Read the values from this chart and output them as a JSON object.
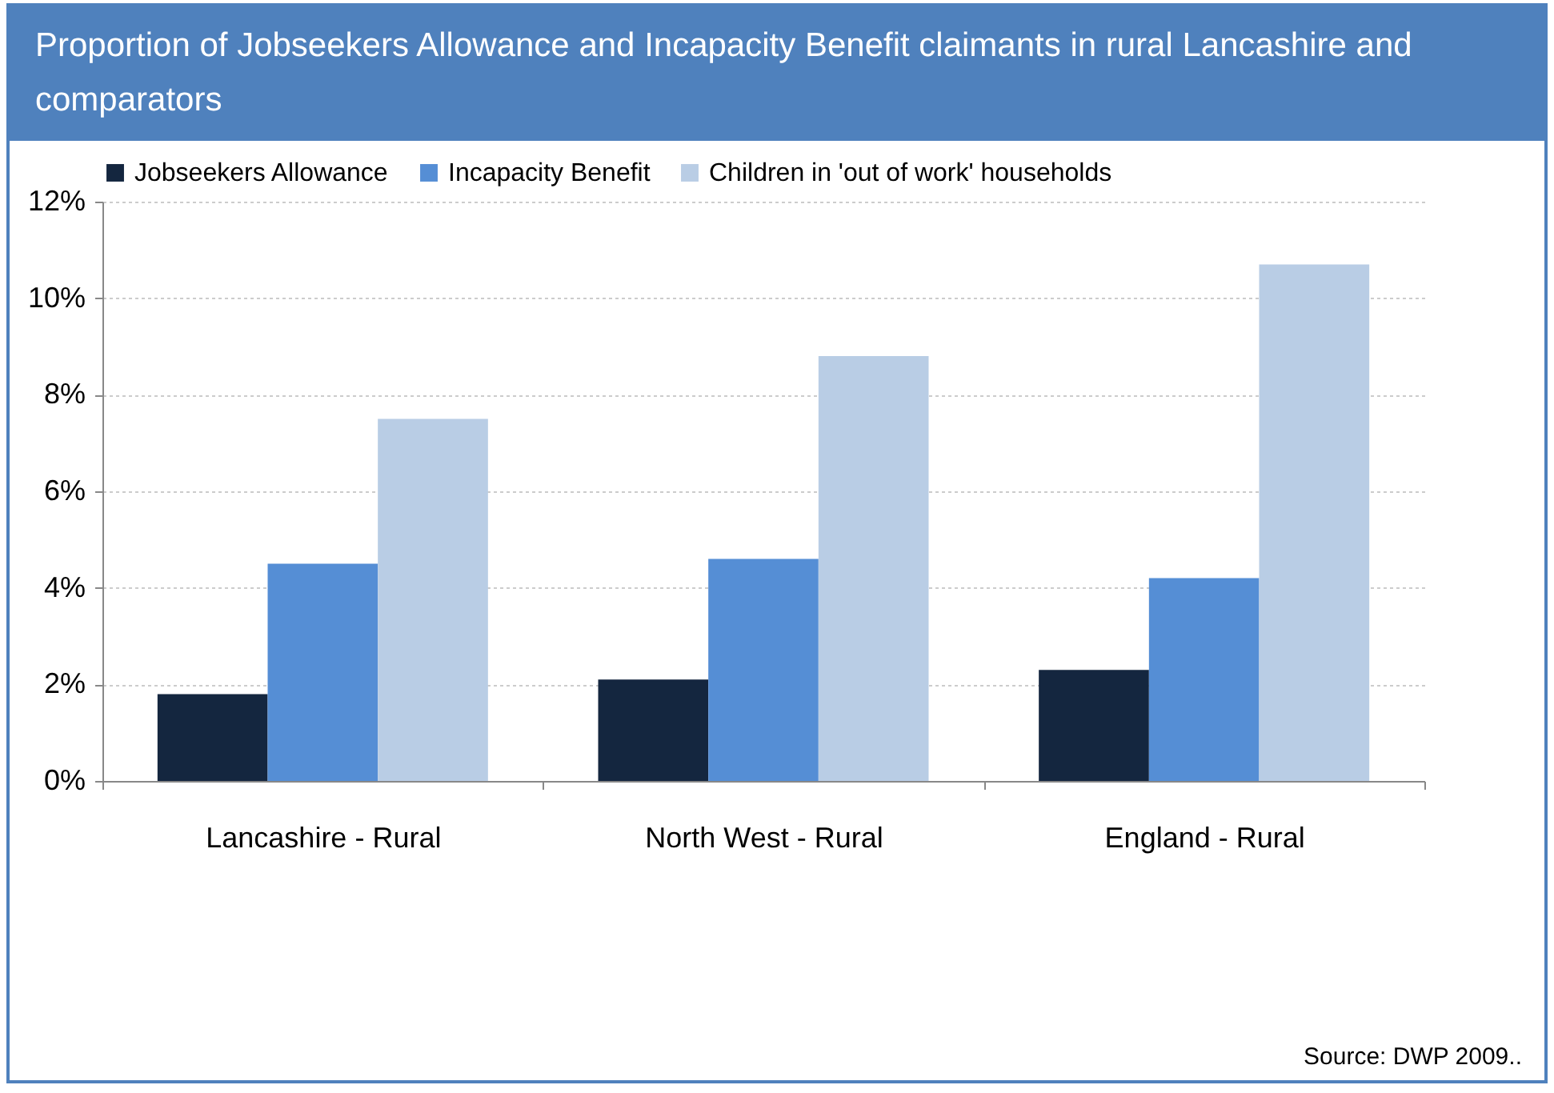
{
  "chart_data": {
    "type": "bar",
    "title": "Proportion of Jobseekers Allowance and Incapacity Benefit claimants in rural Lancashire and comparators",
    "categories": [
      "Lancashire - Rural",
      "North West - Rural",
      "England - Rural"
    ],
    "series": [
      {
        "name": "Jobseekers Allowance",
        "color": "#14263f",
        "values": [
          1.8,
          2.1,
          2.3
        ]
      },
      {
        "name": "Incapacity Benefit",
        "color": "#558ed5",
        "values": [
          4.5,
          4.6,
          4.2
        ]
      },
      {
        "name": "Children in 'out of work' households",
        "color": "#b9cde5",
        "values": [
          7.5,
          8.8,
          10.7
        ]
      }
    ],
    "ylim": [
      0,
      12
    ],
    "yticks": [
      {
        "value": 0,
        "label": "0%"
      },
      {
        "value": 2,
        "label": "2%"
      },
      {
        "value": 4,
        "label": "4%"
      },
      {
        "value": 6,
        "label": "6%"
      },
      {
        "value": 8,
        "label": "8%"
      },
      {
        "value": 10,
        "label": "10%"
      },
      {
        "value": 12,
        "label": "12%"
      }
    ],
    "grid": "y",
    "legend": "top",
    "annotations": [
      "Source: DWP 2009.."
    ]
  }
}
